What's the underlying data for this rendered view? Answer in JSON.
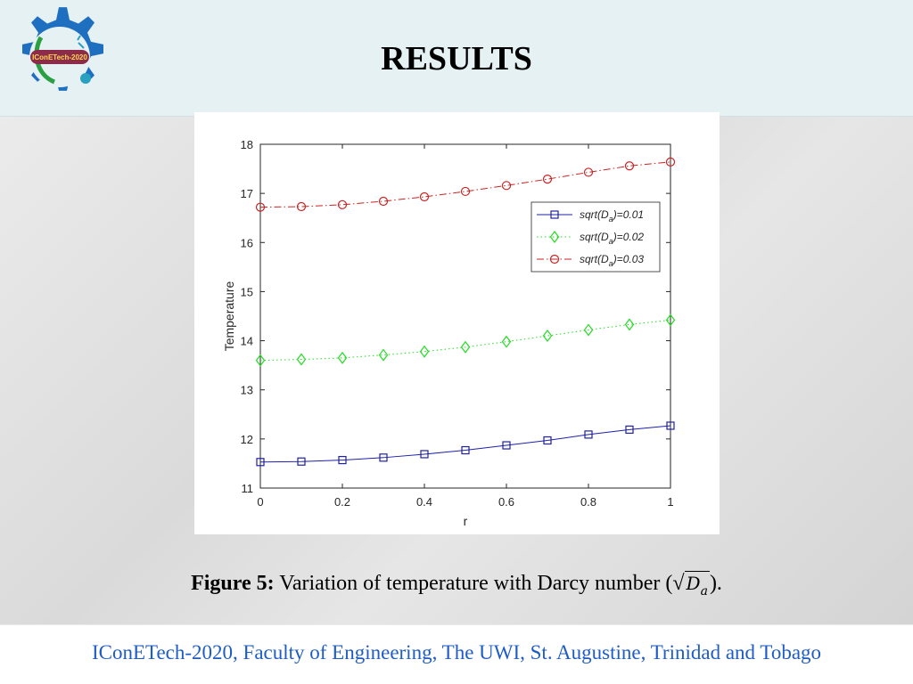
{
  "slide": {
    "title": "RESULTS",
    "logo_text": "IConETech-2020"
  },
  "caption": {
    "label": "Figure 5:",
    "text": "Variation of temperature with Darcy number (",
    "symbol": "D",
    "subscript": "a",
    "end": ")."
  },
  "footer": {
    "text": "IConETech-2020, Faculty of Engineering, The UWI, St. Augustine, Trinidad and Tobago"
  },
  "colors": {
    "series1": "#1f1faa",
    "series2": "#22dd22",
    "series3": "#cc2222",
    "footer_text": "#1f5cc4"
  },
  "chart_data": {
    "type": "line",
    "title": "",
    "xlabel": "r",
    "ylabel": "Temperature",
    "xlim": [
      0,
      1
    ],
    "ylim": [
      11,
      18
    ],
    "xticks": [
      "0",
      "0.2",
      "0.4",
      "0.6",
      "0.8",
      "1"
    ],
    "yticks": [
      "11",
      "12",
      "13",
      "14",
      "15",
      "16",
      "17",
      "18"
    ],
    "legend_position": "upper-right",
    "x": [
      0,
      0.1,
      0.2,
      0.3,
      0.4,
      0.5,
      0.6,
      0.7,
      0.8,
      0.9,
      1.0
    ],
    "series": [
      {
        "name": "sqrt(D",
        "name_sub": "a",
        "name_tail": ")=0.01",
        "marker": "square",
        "line": "solid",
        "values": [
          11.53,
          11.54,
          11.57,
          11.62,
          11.69,
          11.77,
          11.87,
          11.97,
          12.09,
          12.19,
          12.27
        ]
      },
      {
        "name": "sqrt(D",
        "name_sub": "a",
        "name_tail": ")=0.02",
        "marker": "diamond",
        "line": "dotted",
        "values": [
          13.6,
          13.62,
          13.65,
          13.71,
          13.78,
          13.87,
          13.98,
          14.1,
          14.22,
          14.33,
          14.42
        ]
      },
      {
        "name": "sqrt(D",
        "name_sub": "a",
        "name_tail": ")=0.03",
        "marker": "circle",
        "line": "dashdot",
        "values": [
          16.72,
          16.73,
          16.77,
          16.84,
          16.93,
          17.04,
          17.16,
          17.29,
          17.43,
          17.56,
          17.64
        ]
      }
    ]
  }
}
